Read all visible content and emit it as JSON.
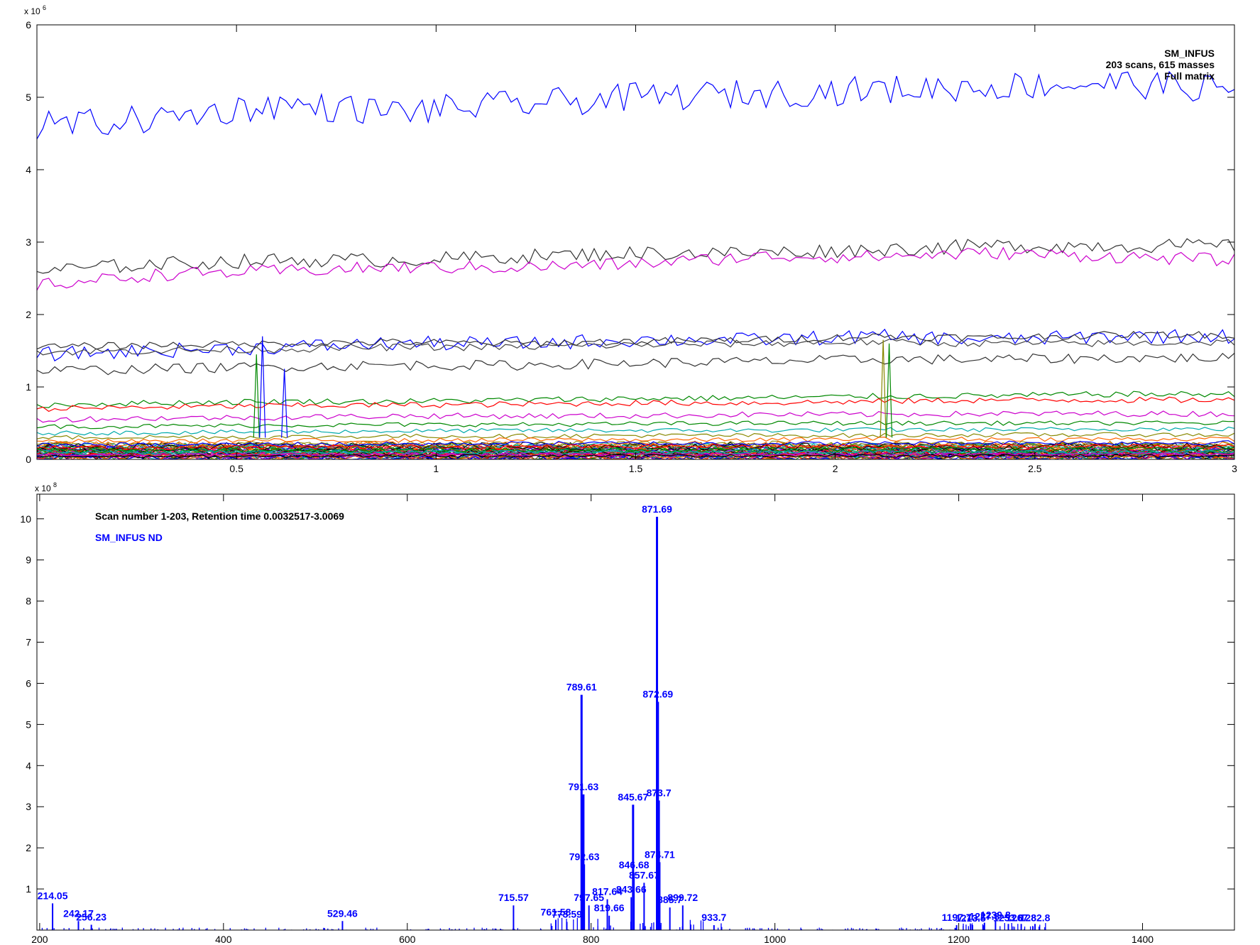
{
  "chart_data": [
    {
      "type": "line",
      "xlim": [
        0,
        3
      ],
      "ylim": [
        0,
        6
      ],
      "y_multiplier_label": "x 10",
      "y_multiplier_exp": "6",
      "x_ticks": [
        0.5,
        1,
        1.5,
        2,
        2.5,
        3
      ],
      "x_tick_labels": [
        "0.5",
        "1",
        "1.5",
        "2",
        "2.5",
        "3"
      ],
      "y_ticks": [
        0,
        1,
        2,
        3,
        4,
        5,
        6
      ],
      "y_tick_labels": [
        "0",
        "1",
        "2",
        "3",
        "4",
        "5",
        "6"
      ],
      "info_lines": [
        "SM_INFUS",
        "203 scans, 615 masses",
        "Full matrix"
      ],
      "n_points": 203,
      "grid": false,
      "series": [
        {
          "color": "#0000ff",
          "base": [
            4.6,
            4.7,
            4.9,
            4.8,
            4.9,
            5.0,
            5.05,
            5.1,
            5.15,
            5.2,
            5.1
          ],
          "noise": 0.2
        },
        {
          "color": "#333333",
          "base": [
            2.6,
            2.7,
            2.75,
            2.75,
            2.8,
            2.85,
            2.85,
            2.9,
            2.95,
            2.95,
            2.95
          ],
          "noise": 0.1
        },
        {
          "color": "#cc00cc",
          "base": [
            2.4,
            2.55,
            2.6,
            2.65,
            2.65,
            2.7,
            2.8,
            2.8,
            2.85,
            2.8,
            2.75
          ],
          "noise": 0.09
        },
        {
          "color": "#0000ff",
          "base": [
            1.45,
            1.5,
            1.55,
            1.6,
            1.6,
            1.65,
            1.65,
            1.7,
            1.65,
            1.7,
            1.7
          ],
          "noise": 0.1
        },
        {
          "color": "#333333",
          "base": [
            1.55,
            1.58,
            1.6,
            1.62,
            1.6,
            1.63,
            1.65,
            1.7,
            1.68,
            1.72,
            1.72
          ],
          "noise": 0.05
        },
        {
          "color": "#444444",
          "base": [
            1.48,
            1.5,
            1.52,
            1.55,
            1.55,
            1.58,
            1.6,
            1.62,
            1.6,
            1.6,
            1.62
          ],
          "noise": 0.05
        },
        {
          "color": "#333333",
          "base": [
            1.22,
            1.25,
            1.28,
            1.3,
            1.3,
            1.33,
            1.35,
            1.38,
            1.38,
            1.4,
            1.4
          ],
          "noise": 0.07
        },
        {
          "color": "#008800",
          "base": [
            0.75,
            0.78,
            0.8,
            0.8,
            0.82,
            0.84,
            0.85,
            0.87,
            0.88,
            0.9,
            0.9
          ],
          "noise": 0.04
        },
        {
          "color": "#ff0000",
          "base": [
            0.7,
            0.72,
            0.74,
            0.75,
            0.76,
            0.78,
            0.78,
            0.8,
            0.82,
            0.82,
            0.82
          ],
          "noise": 0.04
        },
        {
          "color": "#cc00cc",
          "base": [
            0.55,
            0.57,
            0.58,
            0.6,
            0.6,
            0.6,
            0.62,
            0.62,
            0.63,
            0.63,
            0.63
          ],
          "noise": 0.04
        },
        {
          "color": "#008800",
          "base": [
            0.45,
            0.46,
            0.47,
            0.48,
            0.48,
            0.49,
            0.5,
            0.5,
            0.5,
            0.5,
            0.5
          ],
          "noise": 0.03
        },
        {
          "color": "#00aaaa",
          "base": [
            0.36,
            0.37,
            0.38,
            0.39,
            0.4,
            0.4,
            0.4,
            0.41,
            0.41,
            0.42,
            0.42
          ],
          "noise": 0.03
        },
        {
          "color": "#888800",
          "base": [
            0.3,
            0.31,
            0.31,
            0.32,
            0.32,
            0.33,
            0.33,
            0.33,
            0.34,
            0.34,
            0.34
          ],
          "noise": 0.03
        },
        {
          "color": "#ff6600",
          "base": [
            0.25,
            0.25,
            0.26,
            0.26,
            0.27,
            0.27,
            0.27,
            0.28,
            0.28,
            0.28,
            0.28
          ],
          "noise": 0.03
        },
        {
          "color": "#0000ff",
          "base": [
            0.2,
            0.2,
            0.21,
            0.21,
            0.22,
            0.22,
            0.22,
            0.22,
            0.23,
            0.23,
            0.23
          ],
          "noise": 0.03
        },
        {
          "color": "#ff0000",
          "base": [
            0.16,
            0.16,
            0.17,
            0.17,
            0.17,
            0.18,
            0.18,
            0.18,
            0.18,
            0.18,
            0.18
          ],
          "noise": 0.03
        },
        {
          "color": "#008800",
          "base": [
            0.12,
            0.12,
            0.13,
            0.13,
            0.13,
            0.13,
            0.14,
            0.14,
            0.14,
            0.14,
            0.14
          ],
          "noise": 0.03
        },
        {
          "color": "#00aaaa",
          "base": [
            0.09,
            0.09,
            0.1,
            0.1,
            0.1,
            0.1,
            0.1,
            0.1,
            0.1,
            0.1,
            0.1
          ],
          "noise": 0.025
        },
        {
          "color": "#cc00cc",
          "base": [
            0.06,
            0.06,
            0.07,
            0.07,
            0.07,
            0.07,
            0.07,
            0.07,
            0.07,
            0.07,
            0.07
          ],
          "noise": 0.02
        },
        {
          "color": "#000000",
          "base": [
            0.04,
            0.04,
            0.04,
            0.05,
            0.05,
            0.05,
            0.05,
            0.05,
            0.05,
            0.05,
            0.05
          ],
          "noise": 0.02
        }
      ],
      "spikes": [
        {
          "x": 0.55,
          "color": "#008800",
          "top": 1.45
        },
        {
          "x": 0.565,
          "color": "#0000ff",
          "top": 1.7
        },
        {
          "x": 0.62,
          "color": "#0000ff",
          "top": 1.25
        },
        {
          "x": 2.12,
          "color": "#888800",
          "top": 1.65
        },
        {
          "x": 2.135,
          "color": "#008800",
          "top": 1.6
        }
      ]
    },
    {
      "type": "bar",
      "xlim": [
        197,
        1500
      ],
      "ylim": [
        0,
        10.6
      ],
      "y_multiplier_label": "x 10",
      "y_multiplier_exp": "8",
      "x_ticks": [
        200,
        400,
        600,
        800,
        1000,
        1200,
        1400
      ],
      "x_tick_labels": [
        "200",
        "400",
        "600",
        "800",
        "1000",
        "1200",
        "1400"
      ],
      "y_ticks": [
        1,
        2,
        3,
        4,
        5,
        6,
        7,
        8,
        9,
        10
      ],
      "y_tick_labels": [
        "1",
        "2",
        "3",
        "4",
        "5",
        "6",
        "7",
        "8",
        "9",
        "10"
      ],
      "title": "Scan number 1-203,  Retention time 0.0032517-3.0069",
      "subtitle": "SM_INFUS  ND",
      "series_color": "#0000ff",
      "peaks": [
        {
          "x": 214.05,
          "y": 0.65,
          "label": "214.05"
        },
        {
          "x": 242.17,
          "y": 0.22,
          "label": "242.17"
        },
        {
          "x": 256.23,
          "y": 0.13,
          "label": "256.23"
        },
        {
          "x": 529.46,
          "y": 0.22,
          "label": "529.46"
        },
        {
          "x": 715.57,
          "y": 0.6,
          "label": "715.57"
        },
        {
          "x": 761.58,
          "y": 0.25,
          "label": "761.58"
        },
        {
          "x": 773.59,
          "y": 0.2,
          "label": "773.59"
        },
        {
          "x": 789.61,
          "y": 5.72,
          "label": "789.61"
        },
        {
          "x": 790.62,
          "y": 3.1,
          "label": ""
        },
        {
          "x": 791.63,
          "y": 3.3,
          "label": "791.63"
        },
        {
          "x": 792.63,
          "y": 1.6,
          "label": "792.63"
        },
        {
          "x": 797.65,
          "y": 0.6,
          "label": "797.65"
        },
        {
          "x": 817.64,
          "y": 0.75,
          "label": "817.64"
        },
        {
          "x": 819.66,
          "y": 0.35,
          "label": "819.66"
        },
        {
          "x": 843.66,
          "y": 0.8,
          "label": "843.66"
        },
        {
          "x": 845.67,
          "y": 3.05,
          "label": "845.67"
        },
        {
          "x": 846.68,
          "y": 1.4,
          "label": "846.68"
        },
        {
          "x": 857.67,
          "y": 1.15,
          "label": "857.67"
        },
        {
          "x": 871.69,
          "y": 10.05,
          "label": "871.69"
        },
        {
          "x": 872.69,
          "y": 5.55,
          "label": "872.69"
        },
        {
          "x": 873.7,
          "y": 3.15,
          "label": "873.7"
        },
        {
          "x": 874.71,
          "y": 1.65,
          "label": "874.71"
        },
        {
          "x": 885.7,
          "y": 0.55,
          "label": "885.7"
        },
        {
          "x": 899.72,
          "y": 0.6,
          "label": "899.72"
        },
        {
          "x": 933.7,
          "y": 0.12,
          "label": "933.7"
        },
        {
          "x": 1197.7,
          "y": 0.12,
          "label": "1197.7"
        }
      ],
      "cluster_labels": [
        {
          "x": 1213,
          "y": 0.14,
          "label": "1213.5"
        },
        {
          "x": 1228,
          "y": 0.18,
          "label": "1227.8"
        },
        {
          "x": 1240,
          "y": 0.22,
          "label": "1239.8"
        },
        {
          "x": 1254,
          "y": 0.15,
          "label": "1253.8"
        },
        {
          "x": 1268,
          "y": 0.15,
          "label": "1267.8"
        },
        {
          "x": 1283,
          "y": 0.15,
          "label": "1282.8"
        }
      ]
    }
  ]
}
